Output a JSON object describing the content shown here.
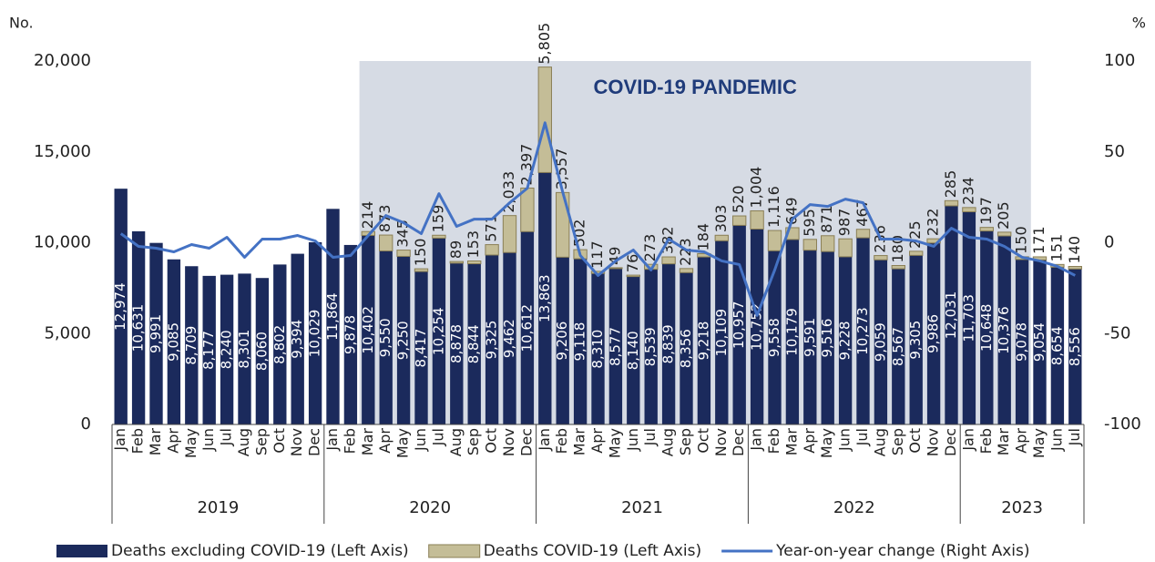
{
  "chart_data": {
    "type": "bar",
    "stacked": true,
    "left_axis_label": "No.",
    "right_axis_label": "%",
    "categories": [
      "Jan",
      "Feb",
      "Mar",
      "Apr",
      "May",
      "Jun",
      "Jul",
      "Aug",
      "Sep",
      "Oct",
      "Nov",
      "Dec",
      "Jan",
      "Feb",
      "Mar",
      "Apr",
      "May",
      "Jun",
      "Jul",
      "Aug",
      "Sep",
      "Oct",
      "Nov",
      "Dec",
      "Jan",
      "Feb",
      "Mar",
      "Apr",
      "May",
      "Jun",
      "Jul",
      "Aug",
      "Sep",
      "Oct",
      "Nov",
      "Dec",
      "Jan",
      "Feb",
      "Mar",
      "Apr",
      "May",
      "Jun",
      "Jul",
      "Aug",
      "Sep",
      "Oct",
      "Nov",
      "Dec",
      "Jan",
      "Feb",
      "Mar",
      "Apr",
      "May",
      "Jun",
      "Jul"
    ],
    "x_groups": [
      {
        "label": "2019",
        "span": 12
      },
      {
        "label": "2020",
        "span": 12
      },
      {
        "label": "2021",
        "span": 12
      },
      {
        "label": "2022",
        "span": 12
      },
      {
        "label": "2023",
        "span": 7
      }
    ],
    "shade": {
      "text": "COVID-19 PANDEMIC",
      "from": {
        "group": "2020",
        "month": "Mar"
      },
      "to": {
        "group": "2023",
        "month": "Apr"
      },
      "color": "#d6dbe4"
    },
    "series": [
      {
        "name": "Deaths excluding COVID-19 (Left Axis)",
        "type": "bar",
        "axis": "y",
        "color": "#1b2a5c",
        "values": [
          12974,
          10631,
          9991,
          9085,
          8709,
          8177,
          8240,
          8301,
          8060,
          8802,
          9394,
          10029,
          11864,
          9878,
          10402,
          9550,
          9250,
          8417,
          10254,
          8878,
          8844,
          9325,
          9462,
          10612,
          13863,
          9206,
          9118,
          8310,
          8577,
          8140,
          8539,
          8839,
          8356,
          9218,
          10109,
          10957,
          10752,
          9558,
          10179,
          9591,
          9516,
          9228,
          10273,
          9059,
          8567,
          9305,
          9986,
          12031,
          11703,
          10648,
          10376,
          9078,
          9054,
          8654,
          8556
        ],
        "value_labels": [
          "12,974",
          "10,631",
          "9,991",
          "9,085",
          "8,709",
          "8,177",
          "8,240",
          "8,301",
          "8,060",
          "8,802",
          "9,394",
          "10,029",
          "11,864",
          "9,878",
          "10,402",
          "9,550",
          "9,250",
          "8,417",
          "10,254",
          "8,878",
          "8,844",
          "9,325",
          "9,462",
          "10,612",
          "13,863",
          "9,206",
          "9,118",
          "8,310",
          "8,577",
          "8,140",
          "8,539",
          "8,839",
          "8,356",
          "9,218",
          "10,109",
          "10,957",
          "10,752",
          "9,558",
          "10,179",
          "9,591",
          "9,516",
          "9,228",
          "10,273",
          "9,059",
          "8,567",
          "9,305",
          "9,986",
          "12,031",
          "11,703",
          "10,648",
          "10,376",
          "9,078",
          "9,054",
          "8,654",
          "8,556"
        ]
      },
      {
        "name": "Deaths COVID-19 (Left Axis)",
        "type": "bar",
        "axis": "y",
        "color": "#c4bd97",
        "values": [
          null,
          null,
          null,
          null,
          null,
          null,
          null,
          null,
          null,
          null,
          null,
          null,
          null,
          null,
          214,
          873,
          345,
          150,
          159,
          89,
          153,
          571,
          2033,
          2397,
          5805,
          3557,
          502,
          117,
          49,
          76,
          273,
          382,
          223,
          184,
          303,
          520,
          1004,
          1116,
          649,
          595,
          871,
          987,
          467,
          236,
          180,
          225,
          232,
          285,
          234,
          197,
          205,
          150,
          171,
          151,
          140
        ],
        "value_labels": [
          null,
          null,
          null,
          null,
          null,
          null,
          null,
          null,
          null,
          null,
          null,
          null,
          null,
          null,
          "214",
          "873",
          "345",
          "150",
          "159",
          "89",
          "153",
          "571",
          "2,033",
          "2,397",
          "5,805",
          "3,557",
          "502",
          "117",
          "49",
          "76",
          "273",
          "382",
          "223",
          "184",
          "303",
          "520",
          "1,004",
          "1,116",
          "649",
          "595",
          "871",
          "987",
          "467",
          "236",
          "180",
          "225",
          "232",
          "285",
          "234",
          "197",
          "205",
          "150",
          "171",
          "151",
          "140"
        ]
      },
      {
        "name": "Year-on-year change (Right Axis)",
        "type": "line",
        "axis": "y2",
        "color": "#4472c4",
        "values": [
          5,
          -2,
          -3,
          -5,
          -1,
          -3,
          3,
          -8,
          2,
          2,
          4,
          1,
          -8,
          -7,
          4,
          15,
          11,
          5,
          27,
          9,
          13,
          13,
          22,
          30,
          66,
          28,
          -7,
          -18,
          -10,
          -4,
          -15,
          2,
          -4,
          -5,
          -10,
          -12,
          -40,
          -15,
          13,
          21,
          20,
          24,
          22,
          2,
          2,
          1,
          -2,
          8,
          3,
          2,
          -2,
          -8,
          -10,
          -13,
          -18
        ]
      }
    ],
    "ylim": [
      0,
      20000
    ],
    "yticks": [
      0,
      {
        "value": 5000,
        "label": "5,000"
      },
      {
        "value": 10000,
        "label": "10,000"
      },
      {
        "value": 15000,
        "label": "15,000"
      },
      {
        "value": 20000,
        "label": "20,000"
      }
    ],
    "y2lim": [
      -100,
      100
    ],
    "y2ticks": [
      -100,
      -50,
      0,
      50,
      100
    ]
  }
}
